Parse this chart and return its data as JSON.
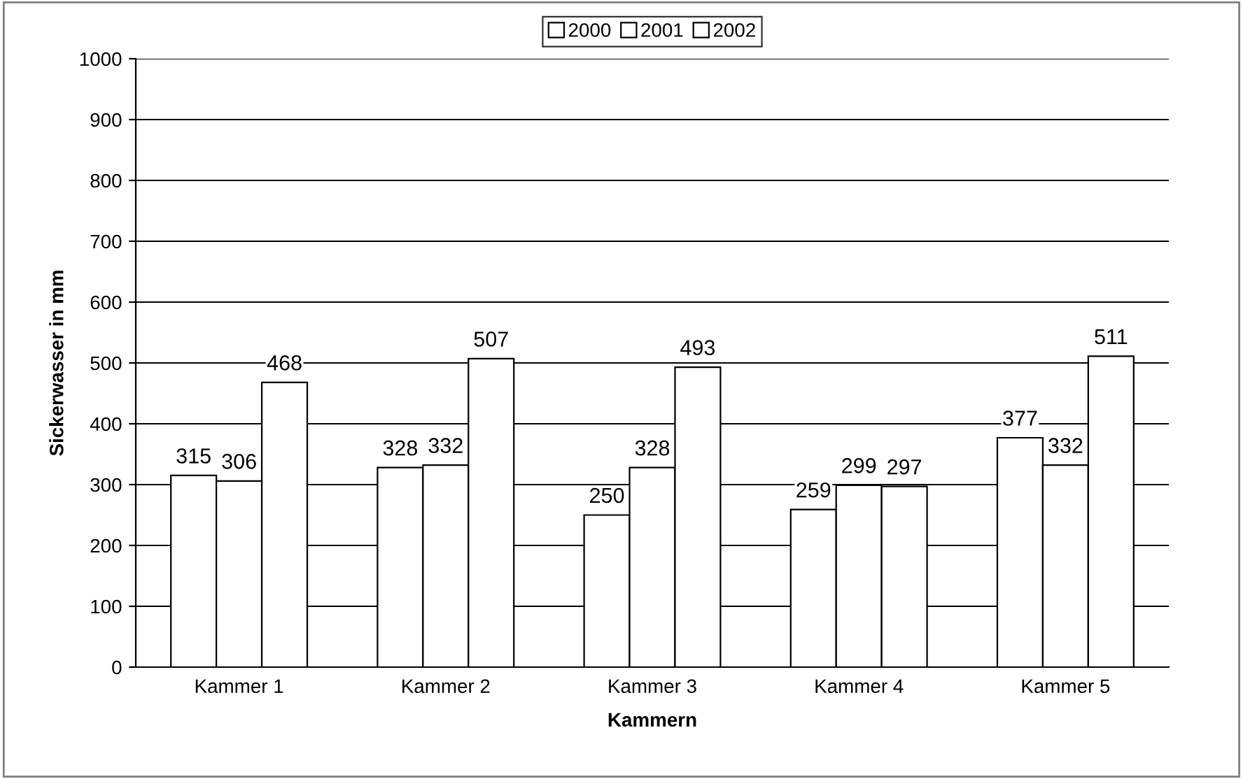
{
  "chart_data": {
    "type": "bar",
    "xlabel": "Kammern",
    "ylabel": "Sickerwasser in mm",
    "categories": [
      "Kammer 1",
      "Kammer 2",
      "Kammer 3",
      "Kammer 4",
      "Kammer 5"
    ],
    "series": [
      {
        "name": "2000",
        "color": "#ffffff",
        "values": [
          315,
          328,
          250,
          259,
          377
        ]
      },
      {
        "name": "2001",
        "color": "#ffffff",
        "values": [
          306,
          332,
          328,
          299,
          332
        ]
      },
      {
        "name": "2002",
        "color": "#ffffff",
        "values": [
          468,
          507,
          493,
          297,
          511
        ]
      }
    ],
    "ylim": [
      0,
      1000
    ],
    "yticks": [
      0,
      100,
      200,
      300,
      400,
      500,
      600,
      700,
      800,
      900,
      1000
    ],
    "grid": "y",
    "legend": "top",
    "data_labels": true
  }
}
